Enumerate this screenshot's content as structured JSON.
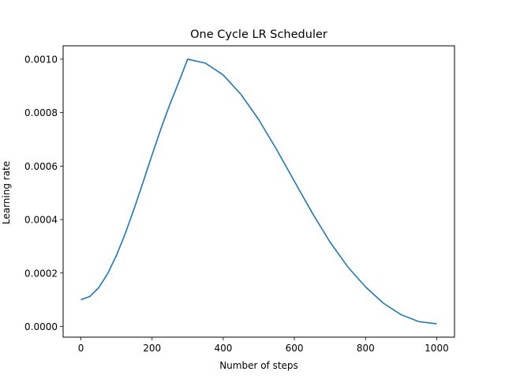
{
  "chart_data": {
    "type": "line",
    "title": "One Cycle LR Scheduler",
    "xlabel": "Number of steps",
    "ylabel": "Learning rate",
    "xlim": [
      -50,
      1050
    ],
    "ylim": [
      -4e-05,
      0.00105
    ],
    "xticks": [
      0,
      200,
      400,
      600,
      800,
      1000
    ],
    "xtick_labels": [
      "0",
      "200",
      "400",
      "600",
      "800",
      "1000"
    ],
    "yticks": [
      0,
      0.0002,
      0.0004,
      0.0006,
      0.0008,
      0.001
    ],
    "ytick_labels": [
      "0.0000",
      "0.0002",
      "0.0004",
      "0.0006",
      "0.0008",
      "0.0010"
    ],
    "grid": false,
    "series": [
      {
        "color": "#1f77b4",
        "x": [
          0,
          25,
          50,
          75,
          100,
          125,
          150,
          175,
          200,
          225,
          250,
          275,
          300,
          350,
          400,
          450,
          500,
          550,
          600,
          650,
          700,
          750,
          800,
          850,
          900,
          950,
          1000
        ],
        "y": [
          0.0001,
          0.000112,
          0.000145,
          0.000197,
          0.000266,
          0.000349,
          0.000442,
          0.000541,
          0.000642,
          0.00074,
          0.000831,
          0.000914,
          0.001,
          0.000985,
          0.000941,
          0.000868,
          0.000773,
          0.000662,
          0.000543,
          0.000425,
          0.000316,
          0.000223,
          0.000148,
          8.7e-05,
          4.4e-05,
          1.8e-05,
          1e-05
        ]
      }
    ]
  }
}
